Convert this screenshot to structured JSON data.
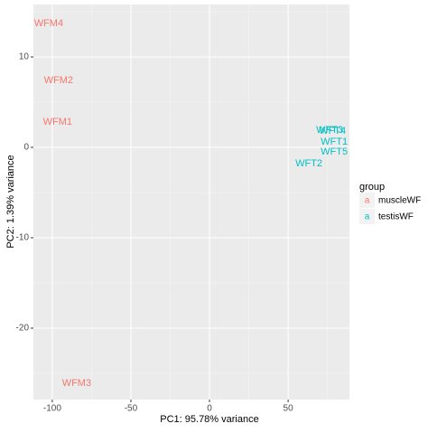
{
  "chart_data": {
    "type": "scatter",
    "xlabel": "PC1: 95.78% variance",
    "ylabel": "PC2: 1.39% variance",
    "xlim": [
      -112,
      89
    ],
    "ylim": [
      -27.9,
      15.8
    ],
    "xticks": [
      -100,
      -50,
      0,
      50
    ],
    "yticks": [
      -20,
      -10,
      0,
      10
    ],
    "grid": true,
    "minor_grid": true,
    "legend_title": "group",
    "legend_position": "right",
    "legend_key_glyph": "a",
    "series": [
      {
        "name": "muscleWF",
        "color": "#F8766D",
        "labels": [
          "WFM4",
          "WFM2",
          "WFM1",
          "WFM3"
        ],
        "x": [
          -102.3,
          -96,
          -96.6,
          -84.5
        ],
        "values": [
          13.7,
          7.4,
          2.8,
          -26.1
        ]
      },
      {
        "name": "testisWF",
        "color": "#00BFC4",
        "labels": [
          "WFT3",
          "WFT4",
          "WFT1",
          "WFT5",
          "WFT2"
        ],
        "x": [
          76.4,
          78.2,
          79.3,
          79.3,
          63.2
        ],
        "values": [
          1.9,
          1.8,
          0.6,
          -0.5,
          -1.8
        ]
      }
    ]
  }
}
